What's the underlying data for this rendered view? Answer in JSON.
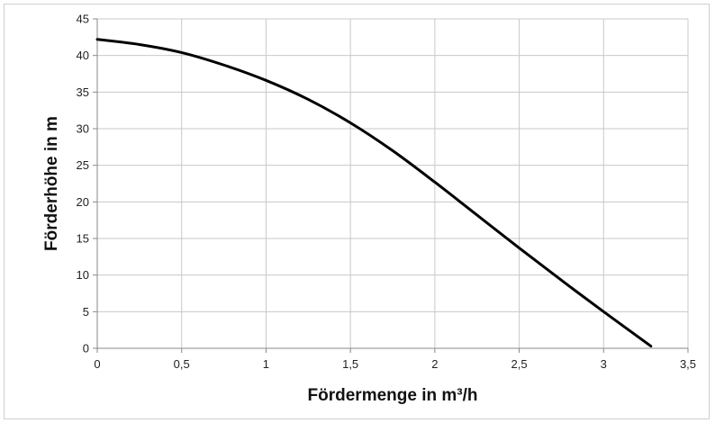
{
  "chart_data": {
    "type": "line",
    "title": "",
    "xlabel": "Fördermenge in m³/h",
    "ylabel": "Förderhöhe in m",
    "xlim": [
      0,
      3.5
    ],
    "ylim": [
      0,
      45
    ],
    "x_ticks": [
      0,
      0.5,
      1,
      1.5,
      2,
      2.5,
      3,
      3.5
    ],
    "x_tick_labels": [
      "0",
      "0,5",
      "1",
      "1,5",
      "2",
      "2,5",
      "3",
      "3,5"
    ],
    "y_ticks": [
      0,
      5,
      10,
      15,
      20,
      25,
      30,
      35,
      40,
      45
    ],
    "y_tick_labels": [
      "0",
      "5",
      "10",
      "15",
      "20",
      "25",
      "30",
      "35",
      "40",
      "45"
    ],
    "grid": true,
    "legend": "none",
    "series": [
      {
        "color": "#000000",
        "x": [
          0,
          0.25,
          0.5,
          0.75,
          1.0,
          1.25,
          1.5,
          1.75,
          2.0,
          2.25,
          2.5,
          2.75,
          3.0,
          3.28
        ],
        "y": [
          42.2,
          41.5,
          40.4,
          38.7,
          36.6,
          34.0,
          30.8,
          27.0,
          22.7,
          18.2,
          13.7,
          9.3,
          5.0,
          0.3
        ]
      }
    ]
  }
}
